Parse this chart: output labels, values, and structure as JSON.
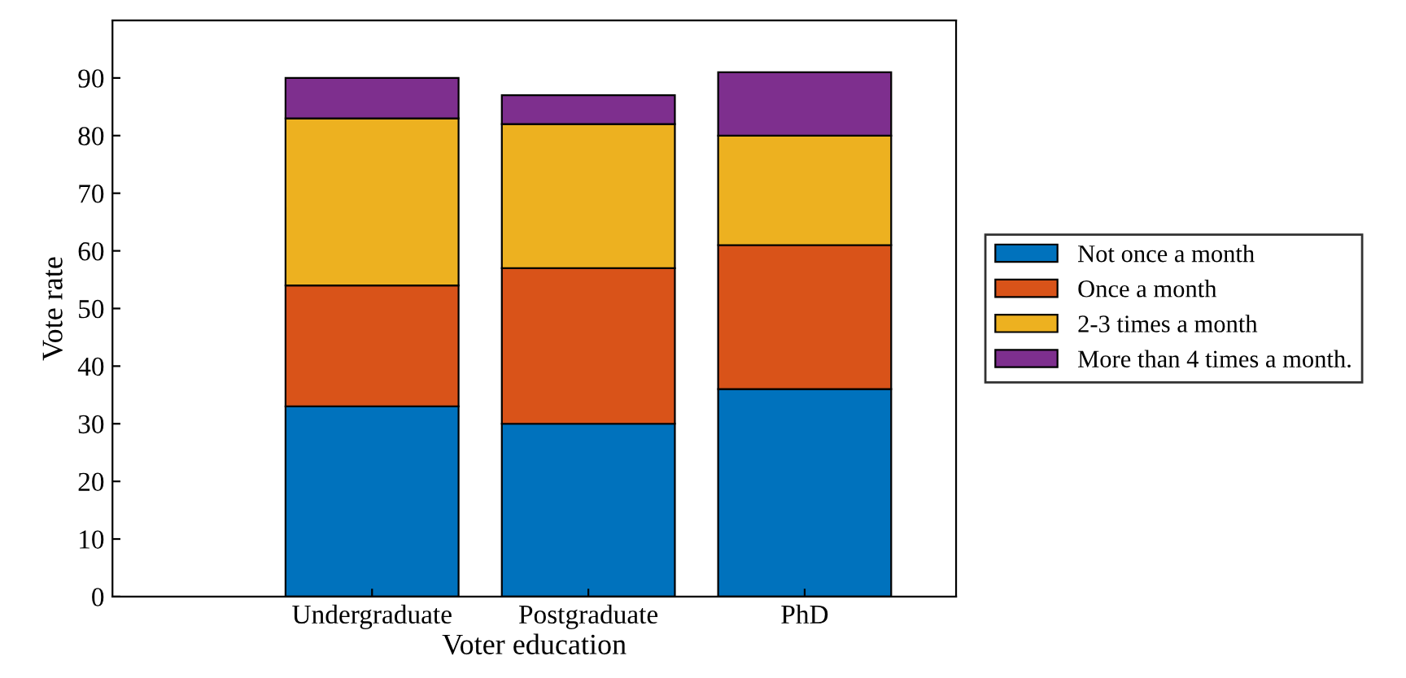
{
  "chart_data": {
    "type": "bar",
    "stacked": true,
    "xlabel": "Voter education",
    "ylabel": "Vote rate",
    "categories": [
      "Undergraduate",
      "Postgraduate",
      "PhD"
    ],
    "series": [
      {
        "name": "Not once a month",
        "color": "#0072bd",
        "values": [
          33,
          30,
          36
        ]
      },
      {
        "name": "Once a month",
        "color": "#d95319",
        "values": [
          21,
          27,
          25
        ]
      },
      {
        "name": "2-3 times a month",
        "color": "#edb120",
        "values": [
          29,
          25,
          19
        ]
      },
      {
        "name": "More than 4 times a month.",
        "color": "#7e2f8e",
        "values": [
          7,
          5,
          11
        ]
      }
    ],
    "ylim": [
      0,
      100
    ],
    "yticks": [
      0,
      10,
      20,
      30,
      40,
      50,
      60,
      70,
      80,
      90
    ],
    "grid": false,
    "legend": "right"
  }
}
